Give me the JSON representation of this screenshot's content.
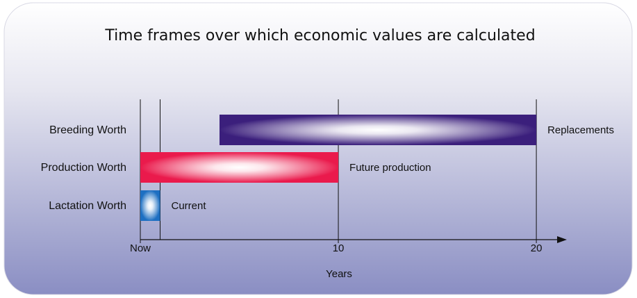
{
  "chart_data": {
    "type": "range-bar",
    "title": "Time frames over which economic values are calculated",
    "categories": [
      "Breeding Worth",
      "Production Worth",
      "Lactation Worth"
    ],
    "starts": [
      4,
      0,
      0
    ],
    "ends": [
      20,
      10,
      1
    ],
    "annotations": [
      "Replacements",
      "Future production",
      "Current"
    ],
    "colors": [
      "#3b1f7c",
      "#ea1a4c",
      "#1d6fc2"
    ],
    "xlabel": "Years",
    "xlim": [
      0,
      21.4
    ],
    "xticks": [
      {
        "value": 0,
        "label": "Now"
      },
      10,
      20
    ],
    "grid_x": [
      0,
      1,
      10,
      20
    ]
  }
}
